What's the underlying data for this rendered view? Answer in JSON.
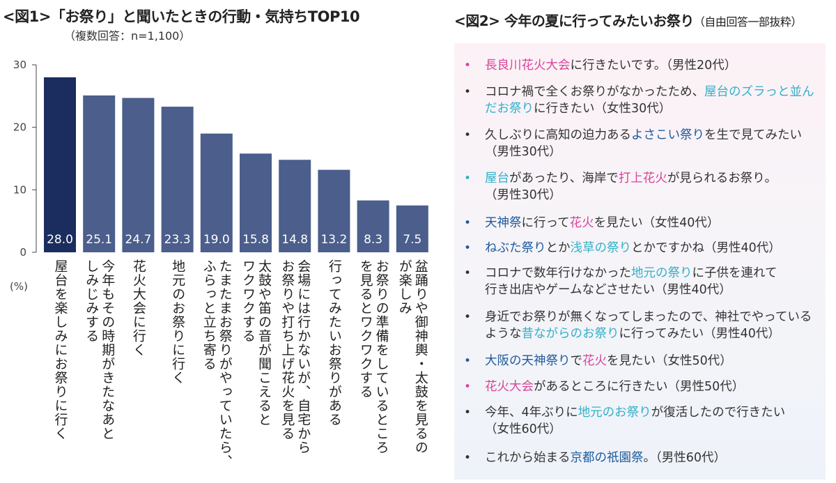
{
  "fig1": {
    "title": "<図1>「お祭り」と聞いたときの行動・気持ちTOP10",
    "subtitle": "（複数回答：n=1,100）"
  },
  "chart_data": {
    "type": "bar",
    "title": "<図1>「お祭り」と聞いたときの行動・気持ちTOP10",
    "subtitle": "（複数回答：n=1,100）",
    "ylabel": "(%)",
    "ylim": [
      0,
      30
    ],
    "yticks": [
      0,
      10,
      20,
      30
    ],
    "grid": false,
    "categories": [
      "屋台を楽しみにお祭りに行く",
      "今年もその時期がきたなあと\nしみじみする",
      "花火大会に行く",
      "地元のお祭りに行く",
      "たまたまお祭りがやっていたら、\nふらっと立ち寄る",
      "太鼓や笛の音が聞こえると\nワクワクする",
      "会場には行かないが、自宅から\nお祭りや打ち上げ花火を見る",
      "行ってみたいお祭りがある",
      "お祭りの準備をしているところ\nを見るとワクワクする",
      "盆踊りや御神輿・太鼓を見るの\nが楽しみ"
    ],
    "values": [
      28.0,
      25.1,
      24.7,
      23.3,
      19.0,
      15.8,
      14.8,
      13.2,
      8.3,
      7.5
    ],
    "value_labels": [
      "28.0",
      "25.1",
      "24.7",
      "23.3",
      "19.0",
      "15.8",
      "14.8",
      "13.2",
      "8.3",
      "7.5"
    ],
    "colors": {
      "highlight": "#1b2c5e",
      "bar": "#4b5e8c",
      "label": "#ffffff"
    }
  },
  "fig2": {
    "title": "<図2> 今年の夏に行ってみたいお祭り",
    "note": "（自由回答一部抜粋）",
    "colors": {
      "pink": "#d9449a",
      "cyan": "#33b0c8",
      "navy": "#1d5a9c",
      "text": "#333333"
    },
    "items": [
      {
        "bullet": "pink",
        "segments": [
          {
            "t": "長良川花火大会",
            "c": "pink"
          },
          {
            "t": "に行きたいです。（男性20代）",
            "c": "text"
          }
        ]
      },
      {
        "bullet": "text",
        "segments": [
          {
            "t": "コロナ禍で全くお祭りがなかったため、",
            "c": "text"
          },
          {
            "t": "屋台のズラっと並ん\nだお祭り",
            "c": "cyan"
          },
          {
            "t": "に行きたい（女性30代）",
            "c": "text"
          }
        ]
      },
      {
        "bullet": "text",
        "segments": [
          {
            "t": "久しぶりに高知の迫力ある",
            "c": "text"
          },
          {
            "t": "よさこい祭り",
            "c": "navy"
          },
          {
            "t": "を生で見てみたい\n（男性30代）",
            "c": "text"
          }
        ]
      },
      {
        "bullet": "cyan",
        "segments": [
          {
            "t": "屋台",
            "c": "cyan"
          },
          {
            "t": "があったり、海岸で",
            "c": "text"
          },
          {
            "t": "打上花火",
            "c": "pink"
          },
          {
            "t": "が見られるお祭り。\n（男性30代）",
            "c": "text"
          }
        ]
      },
      {
        "bullet": "navy",
        "segments": [
          {
            "t": "天神祭",
            "c": "navy"
          },
          {
            "t": "に行って",
            "c": "text"
          },
          {
            "t": "花火",
            "c": "pink"
          },
          {
            "t": "を見たい（女性40代）",
            "c": "text"
          }
        ]
      },
      {
        "bullet": "navy",
        "segments": [
          {
            "t": "ねぶた祭り",
            "c": "navy"
          },
          {
            "t": "とか",
            "c": "text"
          },
          {
            "t": "浅草の祭り",
            "c": "cyan"
          },
          {
            "t": "とかですかね（男性40代）",
            "c": "text"
          }
        ]
      },
      {
        "bullet": "text",
        "segments": [
          {
            "t": "コロナで数年行けなかった",
            "c": "text"
          },
          {
            "t": "地元の祭り",
            "c": "cyan"
          },
          {
            "t": "に子供を連れて\n行き出店やゲームなどさせたい（男性40代）",
            "c": "text"
          }
        ]
      },
      {
        "bullet": "text",
        "segments": [
          {
            "t": "身近でお祭りが無くなってしまったので、神社でやっている\nような",
            "c": "text"
          },
          {
            "t": "昔ながらのお祭り",
            "c": "cyan"
          },
          {
            "t": "に行ってみたい（男性40代）",
            "c": "text"
          }
        ]
      },
      {
        "bullet": "navy",
        "segments": [
          {
            "t": "大阪の天神祭り",
            "c": "navy"
          },
          {
            "t": "で",
            "c": "text"
          },
          {
            "t": "花火",
            "c": "pink"
          },
          {
            "t": "を見たい（女性50代）",
            "c": "text"
          }
        ]
      },
      {
        "bullet": "pink",
        "segments": [
          {
            "t": "花火大会",
            "c": "pink"
          },
          {
            "t": "があるところに行きたい（男性50代）",
            "c": "text"
          }
        ]
      },
      {
        "bullet": "text",
        "segments": [
          {
            "t": "今年、4年ぶりに",
            "c": "text"
          },
          {
            "t": "地元のお祭り",
            "c": "cyan"
          },
          {
            "t": "が復活したので行きたい\n（女性60代）",
            "c": "text"
          }
        ]
      },
      {
        "bullet": "text",
        "segments": [
          {
            "t": "これから始まる",
            "c": "text"
          },
          {
            "t": "京都の祇園祭",
            "c": "navy"
          },
          {
            "t": "。（男性60代）",
            "c": "text"
          }
        ]
      }
    ]
  }
}
